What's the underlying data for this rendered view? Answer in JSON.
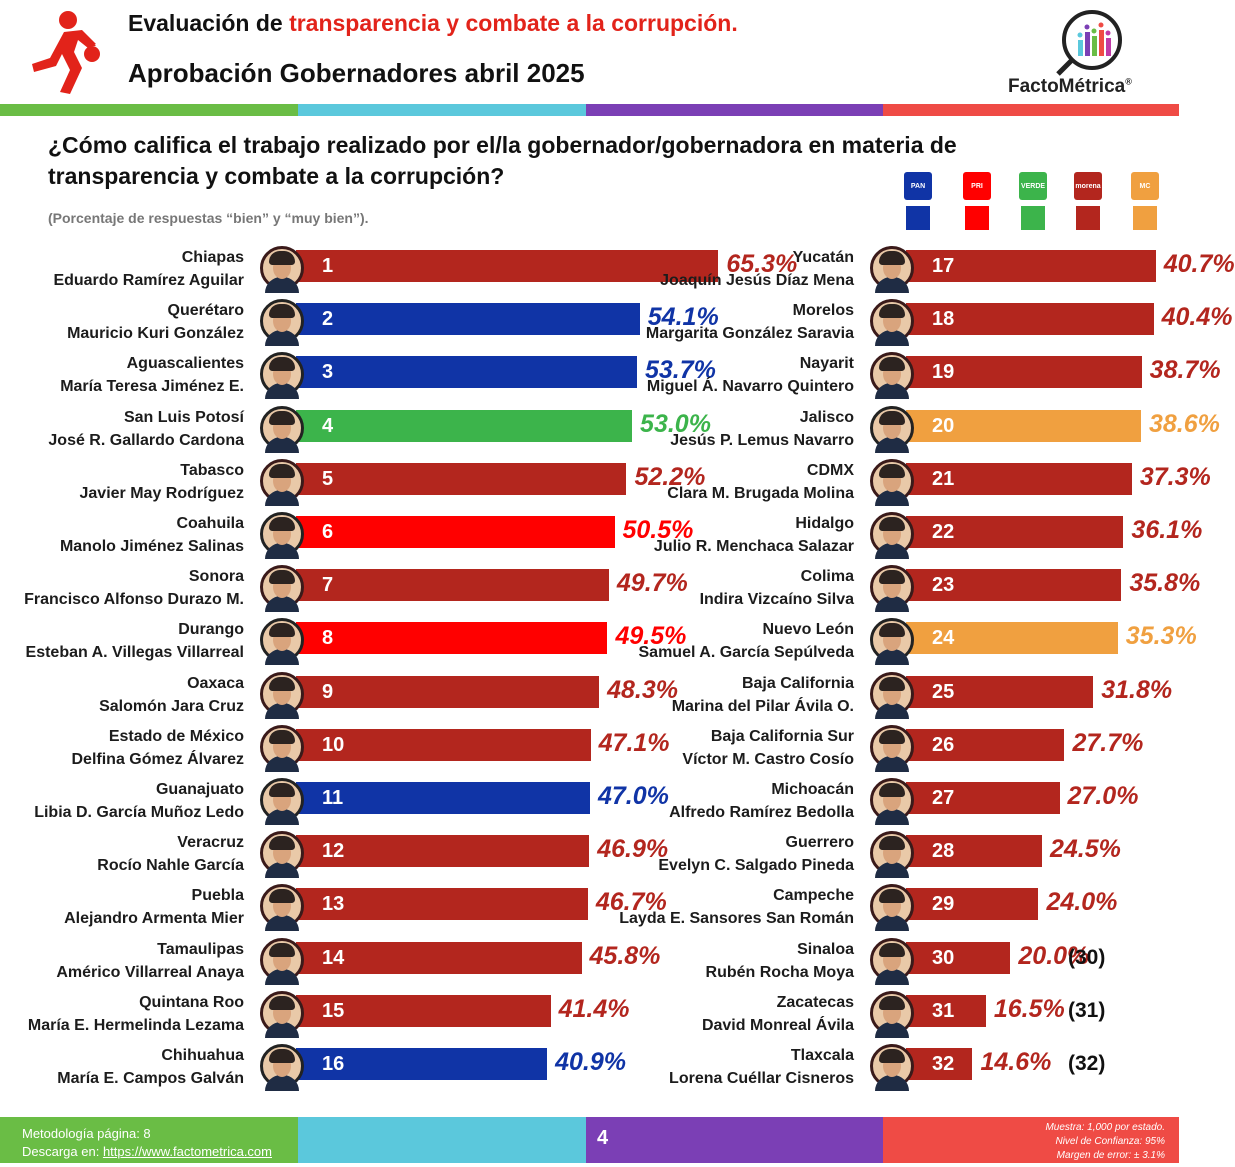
{
  "header": {
    "title_prefix": "Evaluación de ",
    "title_highlight": "transparencia y combate a la corrupción.",
    "subtitle": "Aprobación Gobernadores abril 2025",
    "brand": "FactoMétrica",
    "brand_mark": "®"
  },
  "question": "¿Cómo califica el trabajo realizado por el/la gobernador/gobernadora en materia de transparencia y combate a la corrupción?",
  "note": "(Porcentaje de respuestas “bien” y “muy bien”).",
  "parties": [
    {
      "logo_text": "PAN",
      "color": "#1034a6"
    },
    {
      "logo_text": "PRI",
      "color": "#ff0000"
    },
    {
      "logo_text": "VERDE",
      "color": "#3cb44b"
    },
    {
      "logo_text": "morena",
      "color": "#b3261e"
    },
    {
      "logo_text": "MC",
      "color": "#f0a040"
    }
  ],
  "colors": {
    "morena": "#b3261e",
    "pan": "#1034a6",
    "pri": "#ff0000",
    "verde": "#3cb44b",
    "mc": "#f0a040",
    "stripe_green": "#6abd45",
    "stripe_cyan": "#5bc8dc",
    "stripe_purple": "#7b3fb5",
    "stripe_red": "#ef4b45"
  },
  "chart_data": {
    "type": "bar",
    "orientation": "horizontal",
    "unit": "%",
    "rows": [
      {
        "rank": 1,
        "state": "Chiapas",
        "governor": "Eduardo Ramírez Aguilar",
        "value": 65.3,
        "label": "65.3%",
        "party": "morena"
      },
      {
        "rank": 2,
        "state": "Querétaro",
        "governor": "Mauricio Kuri González",
        "value": 54.1,
        "label": "54.1%",
        "party": "pan"
      },
      {
        "rank": 3,
        "state": "Aguascalientes",
        "governor": "María Teresa Jiménez E.",
        "value": 53.7,
        "label": "53.7%",
        "party": "pan"
      },
      {
        "rank": 4,
        "state": "San Luis Potosí",
        "governor": "José R. Gallardo Cardona",
        "value": 53.0,
        "label": "53.0%",
        "party": "verde"
      },
      {
        "rank": 5,
        "state": "Tabasco",
        "governor": "Javier May Rodríguez",
        "value": 52.2,
        "label": "52.2%",
        "party": "morena"
      },
      {
        "rank": 6,
        "state": "Coahuila",
        "governor": "Manolo Jiménez Salinas",
        "value": 50.5,
        "label": "50.5%",
        "party": "pri"
      },
      {
        "rank": 7,
        "state": "Sonora",
        "governor": "Francisco Alfonso Durazo M.",
        "value": 49.7,
        "label": "49.7%",
        "party": "morena"
      },
      {
        "rank": 8,
        "state": "Durango",
        "governor": "Esteban A. Villegas Villarreal",
        "value": 49.5,
        "label": "49.5%",
        "party": "pri"
      },
      {
        "rank": 9,
        "state": "Oaxaca",
        "governor": "Salomón Jara Cruz",
        "value": 48.3,
        "label": "48.3%",
        "party": "morena"
      },
      {
        "rank": 10,
        "state": "Estado de México",
        "governor": "Delfina Gómez Álvarez",
        "value": 47.1,
        "label": "47.1%",
        "party": "morena"
      },
      {
        "rank": 11,
        "state": "Guanajuato",
        "governor": "Libia D. García Muñoz Ledo",
        "value": 47.0,
        "label": "47.0%",
        "party": "pan"
      },
      {
        "rank": 12,
        "state": "Veracruz",
        "governor": "Rocío Nahle García",
        "value": 46.9,
        "label": "46.9%",
        "party": "morena"
      },
      {
        "rank": 13,
        "state": "Puebla",
        "governor": "Alejandro Armenta Mier",
        "value": 46.7,
        "label": "46.7%",
        "party": "morena"
      },
      {
        "rank": 14,
        "state": "Tamaulipas",
        "governor": "Américo Villarreal Anaya",
        "value": 45.8,
        "label": "45.8%",
        "party": "morena"
      },
      {
        "rank": 15,
        "state": "Quintana Roo",
        "governor": "María E. Hermelinda Lezama",
        "value": 41.4,
        "label": "41.4%",
        "party": "morena"
      },
      {
        "rank": 16,
        "state": "Chihuahua",
        "governor": "María E. Campos Galván",
        "value": 40.9,
        "label": "40.9%",
        "party": "pan"
      },
      {
        "rank": 17,
        "state": "Yucatán",
        "governor": "Joaquín Jesús Díaz Mena",
        "value": 40.7,
        "label": "40.7%",
        "party": "morena"
      },
      {
        "rank": 18,
        "state": "Morelos",
        "governor": "Margarita González Saravia",
        "value": 40.4,
        "label": "40.4%",
        "party": "morena"
      },
      {
        "rank": 19,
        "state": "Nayarit",
        "governor": "Miguel Á. Navarro Quintero",
        "value": 38.7,
        "label": "38.7%",
        "party": "morena"
      },
      {
        "rank": 20,
        "state": "Jalisco",
        "governor": "Jesús P. Lemus Navarro",
        "value": 38.6,
        "label": "38.6%",
        "party": "mc"
      },
      {
        "rank": 21,
        "state": "CDMX",
        "governor": "Clara M. Brugada Molina",
        "value": 37.3,
        "label": "37.3%",
        "party": "morena"
      },
      {
        "rank": 22,
        "state": "Hidalgo",
        "governor": "Julio R. Menchaca Salazar",
        "value": 36.1,
        "label": "36.1%",
        "party": "morena"
      },
      {
        "rank": 23,
        "state": "Colima",
        "governor": "Indira Vizcaíno Silva",
        "value": 35.8,
        "label": "35.8%",
        "party": "morena"
      },
      {
        "rank": 24,
        "state": "Nuevo León",
        "governor": "Samuel A. García Sepúlveda",
        "value": 35.3,
        "label": "35.3%",
        "party": "mc"
      },
      {
        "rank": 25,
        "state": "Baja California",
        "governor": "Marina del Pilar Ávila O.",
        "value": 31.8,
        "label": "31.8%",
        "party": "morena"
      },
      {
        "rank": 26,
        "state": "Baja California Sur",
        "governor": "Víctor M. Castro Cosío",
        "value": 27.7,
        "label": "27.7%",
        "party": "morena"
      },
      {
        "rank": 27,
        "state": "Michoacán",
        "governor": "Alfredo Ramírez Bedolla",
        "value": 27.0,
        "label": "27.0%",
        "party": "morena"
      },
      {
        "rank": 28,
        "state": "Guerrero",
        "governor": "Evelyn C. Salgado Pineda",
        "value": 24.5,
        "label": "24.5%",
        "party": "morena"
      },
      {
        "rank": 29,
        "state": "Campeche",
        "governor": "Layda E. Sansores San Román",
        "value": 24.0,
        "label": "24.0%",
        "party": "morena"
      },
      {
        "rank": 30,
        "state": "Sinaloa",
        "governor": "Rubén Rocha Moya",
        "value": 20.0,
        "label": "20.0%",
        "party": "morena",
        "rank_label": "(30)"
      },
      {
        "rank": 31,
        "state": "Zacatecas",
        "governor": "David Monreal Ávila",
        "value": 16.5,
        "label": "16.5%",
        "party": "morena",
        "rank_label": "(31)"
      },
      {
        "rank": 32,
        "state": "Tlaxcala",
        "governor": "Lorena Cuéllar Cisneros",
        "value": 14.6,
        "label": "14.6%",
        "party": "morena",
        "rank_label": "(32)"
      }
    ]
  },
  "footer": {
    "methodology": "Metodología página: 8",
    "download_prefix": "Descarga en: ",
    "download_url": "https://www.factometrica.com",
    "page_number": "4",
    "sample": "Muestra:  1,000 por estado.",
    "confidence": "Nivel de Confianza: 95%",
    "margin": "Margen de error: ± 3.1%"
  }
}
